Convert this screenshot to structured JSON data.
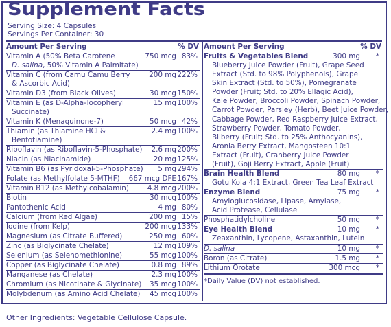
{
  "title": "Supplement Facts",
  "serving_size": "Serving Size: 4 Capsules",
  "servings_per_container": "Servings Per Container: 30",
  "left_header": {
    "amount": "Amount Per Serving",
    "dv": "% DV"
  },
  "right_header": {
    "amount": "Amount Per Serving",
    "dv": "% DV"
  },
  "left_rows": [
    {
      "lines": [
        {
          "text": "Vitamin A (50% Beta Carotene",
          "amount": "750 mcg",
          "dv": "83%"
        },
        {
          "text": "D. salina, 50% Vitamin A Palmitate)",
          "italic_prefix": "D. salina",
          "rest": ", 50% Vitamin A Palmitate)"
        }
      ]
    },
    {
      "lines": [
        {
          "text": "Vitamin C (from Camu Camu Berry",
          "amount": "200 mg",
          "dv": "222%"
        },
        {
          "text": "& Ascorbic Acid)"
        }
      ]
    },
    {
      "lines": [
        {
          "text": "Vitamin D3 (from Black Olives)",
          "amount": "30 mcg",
          "dv": "150%"
        }
      ]
    },
    {
      "lines": [
        {
          "text": "Vitamin E (as D-Alpha-Tocopheryl",
          "amount": "15 mg",
          "dv": "100%"
        },
        {
          "text": "Succinate)"
        }
      ]
    },
    {
      "lines": [
        {
          "text": "Vitamin K (Menaquinone-7)",
          "amount": "50 mcg",
          "dv": "42%"
        }
      ]
    },
    {
      "lines": [
        {
          "text": "Thiamin (as Thiamine HCl &",
          "amount": "2.4 mg",
          "dv": "100%"
        },
        {
          "text": "Benfotiamine)"
        }
      ]
    },
    {
      "lines": [
        {
          "text": "Riboflavin (as Riboflavin-5-Phosphate)",
          "amount": "2.6 mg",
          "dv": "200%"
        }
      ]
    },
    {
      "lines": [
        {
          "text": "Niacin (as Niacinamide)",
          "amount": "20 mg",
          "dv": "125%"
        }
      ]
    },
    {
      "lines": [
        {
          "text": "Vitamin B6 (as Pyridoxal-5-Phosphate)",
          "amount": "5 mg",
          "dv": "294%"
        }
      ]
    },
    {
      "lines": [
        {
          "text": "Folate (as Methylfolate 5-MTHF)",
          "amount": "667 mcg DFE",
          "dv": "167%"
        }
      ]
    },
    {
      "lines": [
        {
          "text": "Vitamin B12 (as Methylcobalamin)",
          "amount": "4.8 mcg",
          "dv": "200%"
        }
      ]
    },
    {
      "lines": [
        {
          "text": "Biotin",
          "amount": "30 mcg",
          "dv": "100%"
        }
      ]
    },
    {
      "lines": [
        {
          "text": "Pantothenic Acid",
          "amount": "4 mg",
          "dv": "80%"
        }
      ]
    },
    {
      "lines": [
        {
          "text": "Calcium (from Red Algae)",
          "amount": "200 mg",
          "dv": "15%"
        }
      ]
    },
    {
      "lines": [
        {
          "text": "Iodine (from Kelp)",
          "amount": "200 mcg",
          "dv": "133%"
        }
      ]
    },
    {
      "lines": [
        {
          "text": "Magnesium (as Citrate Buffered)",
          "amount": "250 mg",
          "dv": "60%"
        }
      ]
    },
    {
      "lines": [
        {
          "text": "Zinc (as Biglycinate Chelate)",
          "amount": "12 mg",
          "dv": "109%"
        }
      ]
    },
    {
      "lines": [
        {
          "text": "Selenium (as Selenomethionine)",
          "amount": "55 mcg",
          "dv": "100%"
        }
      ]
    },
    {
      "lines": [
        {
          "text": "Copper (as Biglycinate Chelate)",
          "amount": "0.8 mg",
          "dv": "89%"
        }
      ]
    },
    {
      "lines": [
        {
          "text": "Manganese (as Chelate)",
          "amount": "2.3 mg",
          "dv": "100%"
        }
      ]
    },
    {
      "lines": [
        {
          "text": "Chromium (as Nicotinate & Glycinate)",
          "amount": "35 mcg",
          "dv": "100%"
        }
      ]
    },
    {
      "lines": [
        {
          "text": "Molybdenum (as Amino Acid Chelate)",
          "amount": "45 mcg",
          "dv": "100%"
        }
      ]
    }
  ],
  "right_rows": {
    "fruits_veg": {
      "name": "Fruits & Vegetables Blend",
      "amount": "300 mg",
      "dv": "*",
      "ingredients": [
        "Blueberry Juice Powder (Fruit), Grape Seed",
        "Extract (Std. to 98% Polyphenols), Grape",
        "Skin Extract (Std. to 50%), Pomegranate",
        "Powder (Fruit; Std. to 20% Ellagic Acid),",
        "Kale Powder, Broccoli Powder, Spinach Powder,",
        "Carrot Powder, Parsley (Herb), Beet Juice Powder,",
        "Cabbage Powder, Red Raspberry Juice Extract,",
        "Strawberry Powder, Tomato Powder,",
        "Bilberry (Fruit; Std. to 25% Anthocyanins),",
        "Aronia Berry Extract, Mangosteen 10:1",
        "Extract (Fruit), Cranberry Juice Powder",
        "(Fruit), Goji Berry Extract, Apple (Fruit)"
      ]
    },
    "brain": {
      "name": "Brain Health Blend",
      "amount": "80 mg",
      "dv": "*",
      "ingredients": [
        "Gotu Kola 4:1 Extract, Green Tea Leaf Extract"
      ]
    },
    "enzyme": {
      "name": "Enzyme Blend",
      "amount": "75 mg",
      "dv": "*",
      "ingredients": [
        "Amyloglucosidase, Lipase, Amylase,",
        "Acid Protease, Cellulase"
      ]
    },
    "phosphatidylcholine": {
      "name": "Phosphatidylcholine",
      "amount": "50 mg",
      "dv": "*"
    },
    "eye": {
      "name": "Eye Health Blend",
      "amount": "10 mg",
      "dv": "*",
      "ingredients": [
        "Zeaxanthin, Lycopene, Astaxanthin, Lutein"
      ]
    },
    "dsalina": {
      "name": "D. salina",
      "amount": "10 mg",
      "dv": "*"
    },
    "boron": {
      "name": "Boron (as Citrate)",
      "amount": "1.5 mg",
      "dv": "*"
    },
    "lithium": {
      "name": "Lithium Orotate",
      "amount": "300 mcg",
      "dv": "*"
    }
  },
  "footnote": "*Daily Value (DV) not established.",
  "other_ingredients": "Other Ingredients: Vegetable Cellulose Capsule.",
  "colors": {
    "ink": "#3f3b86",
    "background": "#ffffff"
  }
}
